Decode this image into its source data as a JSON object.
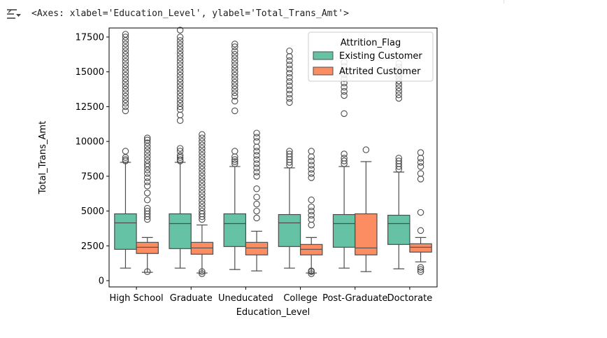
{
  "output": {
    "text": "<Axes: xlabel='Education_Level', ylabel='Total_Trans_Amt'>",
    "icon": "output-collapse-icon"
  },
  "chart_data": {
    "type": "boxplot",
    "xlabel": "Education_Level",
    "ylabel": "Total_Trans_Amt",
    "categories": [
      "High School",
      "Graduate",
      "Uneducated",
      "College",
      "Post-Graduate",
      "Doctorate"
    ],
    "ylim": [
      -450,
      18150
    ],
    "yticks": [
      0,
      2500,
      5000,
      7500,
      10000,
      12500,
      15000,
      17500
    ],
    "ytick_labels": [
      "0",
      "2500",
      "5000",
      "7500",
      "10000",
      "12500",
      "15000",
      "17500"
    ],
    "grid": false,
    "legend": {
      "title": "Attrition_Flag",
      "placement": "upper-right",
      "entries": [
        "Existing Customer",
        "Attrited Customer"
      ]
    },
    "series": [
      {
        "name": "Existing Customer",
        "color": "#66c2a5",
        "boxes": [
          {
            "whislo": 900,
            "q1": 2250,
            "med": 4150,
            "q3": 4800,
            "whishi": 8500,
            "fliers": [
              8600,
              8700,
              8850,
              9300,
              12200,
              12500,
              12750,
              13000,
              13250,
              13500,
              13750,
              14000,
              14250,
              14500,
              14750,
              15000,
              15250,
              15500,
              15750,
              16000,
              16250,
              16500,
              16750,
              17000,
              17250,
              17500,
              17700
            ]
          },
          {
            "whislo": 900,
            "q1": 2300,
            "med": 4100,
            "q3": 4800,
            "whishi": 8500,
            "fliers": [
              8600,
              8700,
              8850,
              9000,
              9300,
              9500,
              11500,
              11900,
              12300,
              12500,
              12750,
              13000,
              13250,
              13500,
              13750,
              14000,
              14250,
              14500,
              14750,
              15000,
              15250,
              15500,
              15750,
              16000,
              16250,
              16500,
              16750,
              17000,
              17250,
              17500,
              18000
            ]
          },
          {
            "whislo": 800,
            "q1": 2450,
            "med": 4100,
            "q3": 4800,
            "whishi": 8200,
            "fliers": [
              8400,
              8550,
              8700,
              8900,
              9300,
              12200,
              12900,
              13250,
              13500,
              13750,
              14000,
              14250,
              14500,
              14750,
              15000,
              15250,
              15500,
              15750,
              16000,
              16250,
              16500,
              16800,
              17000
            ]
          },
          {
            "whislo": 900,
            "q1": 2450,
            "med": 4150,
            "q3": 4750,
            "whishi": 8100,
            "fliers": [
              8300,
              8500,
              8700,
              8900,
              9100,
              9300,
              12800,
              13100,
              13400,
              13700,
              14000,
              14300,
              14600,
              14900,
              15200,
              15500,
              15800,
              16100,
              16500
            ]
          },
          {
            "whislo": 900,
            "q1": 2400,
            "med": 4100,
            "q3": 4750,
            "whishi": 8200,
            "fliers": [
              8400,
              8600,
              8800,
              9100,
              12000,
              13300,
              13600,
              13900,
              14200,
              14500,
              14800,
              15100,
              15400,
              15700
            ]
          },
          {
            "whislo": 850,
            "q1": 2600,
            "med": 4100,
            "q3": 4700,
            "whishi": 7800,
            "fliers": [
              8000,
              8200,
              8400,
              8600,
              8800,
              13100,
              13350,
              13600,
              13850,
              14100,
              14350,
              14600,
              14850,
              15100,
              15350,
              15600
            ]
          }
        ]
      },
      {
        "name": "Attrited Customer",
        "color": "#fc8d62",
        "boxes": [
          {
            "whislo": 600,
            "q1": 1950,
            "med": 2400,
            "q3": 2750,
            "whishi": 3100,
            "fliers": [
              650,
              4400,
              4600,
              4800,
              5000,
              5200,
              5800,
              6300,
              6800,
              7100,
              7400,
              7700,
              7950,
              8200,
              8400,
              8650,
              8900,
              9150,
              9400,
              9650,
              9900,
              10100,
              10250
            ]
          },
          {
            "whislo": 550,
            "q1": 1900,
            "med": 2350,
            "q3": 2750,
            "whishi": 4000,
            "fliers": [
              500,
              650,
              4400,
              4600,
              4800,
              5000,
              5250,
              5500,
              5750,
              6000,
              6250,
              6500,
              6750,
              7000,
              7250,
              7500,
              7750,
              8000,
              8250,
              8500,
              8750,
              9000,
              9250,
              9500,
              9750,
              10000,
              10250,
              10500
            ]
          },
          {
            "whislo": 700,
            "q1": 1850,
            "med": 2350,
            "q3": 2750,
            "whishi": 3550,
            "fliers": [
              4500,
              5000,
              5500,
              6000,
              6600,
              7500,
              7800,
              8100,
              8400,
              8700,
              9000,
              9300,
              9600,
              10000,
              10300,
              10600
            ]
          },
          {
            "whislo": 550,
            "q1": 1850,
            "med": 2250,
            "q3": 2600,
            "whishi": 3100,
            "fliers": [
              500,
              650,
              700,
              4000,
              4400,
              4700,
              5000,
              5300,
              5800,
              7400,
              7700,
              8000,
              8300,
              8600,
              8900,
              9300
            ]
          },
          {
            "whislo": 650,
            "q1": 1850,
            "med": 2350,
            "q3": 4800,
            "whishi": 8550,
            "fliers": [
              9400
            ]
          },
          {
            "whislo": 1350,
            "q1": 2050,
            "med": 2400,
            "q3": 2650,
            "whishi": 3100,
            "fliers": [
              650,
              800,
              950,
              3600,
              4900,
              7300,
              7700,
              8200,
              8500,
              8800,
              9200
            ]
          }
        ]
      }
    ]
  }
}
